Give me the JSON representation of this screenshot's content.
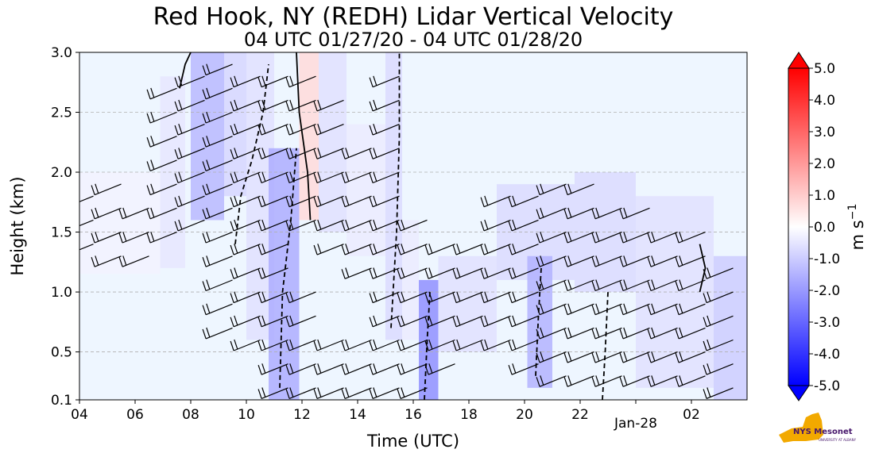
{
  "chart_data": {
    "type": "heatmap",
    "title": "Red Hook, NY (REDH) Lidar Vertical Velocity",
    "subtitle": "04 UTC 01/27/20 - 04 UTC 01/28/20",
    "xlabel": "Time (UTC)",
    "ylabel": "Height (km)",
    "x_range_hours_utc": [
      4,
      28
    ],
    "x_ticks": [
      {
        "hour": 4,
        "label": "04"
      },
      {
        "hour": 6,
        "label": "06"
      },
      {
        "hour": 8,
        "label": "08"
      },
      {
        "hour": 10,
        "label": "10"
      },
      {
        "hour": 12,
        "label": "12"
      },
      {
        "hour": 14,
        "label": "14"
      },
      {
        "hour": 16,
        "label": "16"
      },
      {
        "hour": 18,
        "label": "18"
      },
      {
        "hour": 20,
        "label": "20"
      },
      {
        "hour": 22,
        "label": "22"
      },
      {
        "hour": 24,
        "label": "Jan-28"
      },
      {
        "hour": 26,
        "label": "02"
      }
    ],
    "ylim": [
      0.1,
      3.0
    ],
    "y_ticks": [
      {
        "value": 0.1,
        "label": "0.1"
      },
      {
        "value": 0.5,
        "label": "0.5"
      },
      {
        "value": 1.0,
        "label": "1.0"
      },
      {
        "value": 1.5,
        "label": "1.5"
      },
      {
        "value": 2.0,
        "label": "2.0"
      },
      {
        "value": 2.5,
        "label": "2.5"
      },
      {
        "value": 3.0,
        "label": "3.0"
      }
    ],
    "grid": "horizontal dashed",
    "colorbar": {
      "label": "m s",
      "label_exponent": "−1",
      "range": [
        -5.0,
        5.0
      ],
      "ticks": [
        {
          "value": 5,
          "label": "5.0"
        },
        {
          "value": 4,
          "label": "4.0"
        },
        {
          "value": 3,
          "label": "3.0"
        },
        {
          "value": 2,
          "label": "2.0"
        },
        {
          "value": 1,
          "label": "1.0"
        },
        {
          "value": 0,
          "label": "0.0"
        },
        {
          "value": -1,
          "label": "-1.0"
        },
        {
          "value": -2,
          "label": "-2.0"
        },
        {
          "value": -3,
          "label": "-3.0"
        },
        {
          "value": -4,
          "label": "-4.0"
        },
        {
          "value": -5,
          "label": "-5.0"
        }
      ],
      "colors": {
        "min": "#0000ff",
        "mid": "#ffffff",
        "max": "#ff0000",
        "background": "#eef6ff"
      }
    },
    "velocity_regions": [
      {
        "t0": 4.0,
        "t1": 6.9,
        "h0": 1.15,
        "h1": 2.0,
        "w": -0.25
      },
      {
        "t0": 6.9,
        "t1": 7.8,
        "h0": 1.2,
        "h1": 2.8,
        "w": -0.5
      },
      {
        "t0": 8.0,
        "t1": 9.2,
        "h0": 1.6,
        "h1": 3.0,
        "w": -1.4
      },
      {
        "t0": 9.2,
        "t1": 10.0,
        "h0": 1.8,
        "h1": 3.0,
        "w": -0.8
      },
      {
        "t0": 10.0,
        "t1": 11.0,
        "h0": 0.6,
        "h1": 3.0,
        "w": -0.6
      },
      {
        "t0": 10.8,
        "t1": 11.9,
        "h0": 0.1,
        "h1": 2.2,
        "w": -1.6
      },
      {
        "t0": 11.9,
        "t1": 12.6,
        "h0": 1.6,
        "h1": 3.0,
        "w": 0.7
      },
      {
        "t0": 12.6,
        "t1": 13.6,
        "h0": 1.5,
        "h1": 3.0,
        "w": -0.6
      },
      {
        "t0": 13.6,
        "t1": 15.0,
        "h0": 1.3,
        "h1": 2.4,
        "w": -0.4
      },
      {
        "t0": 15.0,
        "t1": 15.6,
        "h0": 0.6,
        "h1": 3.0,
        "w": -0.7
      },
      {
        "t0": 15.6,
        "t1": 16.2,
        "h0": 0.6,
        "h1": 1.6,
        "w": -0.4
      },
      {
        "t0": 16.2,
        "t1": 16.9,
        "h0": 0.1,
        "h1": 1.1,
        "w": -2.2
      },
      {
        "t0": 16.9,
        "t1": 19.0,
        "h0": 0.5,
        "h1": 1.3,
        "w": -0.6
      },
      {
        "t0": 19.0,
        "t1": 21.8,
        "h0": 1.1,
        "h1": 1.9,
        "w": -0.7
      },
      {
        "t0": 20.1,
        "t1": 21.0,
        "h0": 0.2,
        "h1": 1.3,
        "w": -1.5
      },
      {
        "t0": 21.8,
        "t1": 24.0,
        "h0": 1.0,
        "h1": 2.0,
        "w": -0.7
      },
      {
        "t0": 24.0,
        "t1": 26.8,
        "h0": 0.2,
        "h1": 1.8,
        "w": -0.6
      },
      {
        "t0": 26.8,
        "t1": 28.0,
        "h0": 0.1,
        "h1": 1.3,
        "w": -1.0
      }
    ],
    "contours": [
      {
        "w": -1.0,
        "style": "dashed",
        "points": [
          [
            9.6,
            1.4
          ],
          [
            9.8,
            1.8
          ],
          [
            10.2,
            2.1
          ],
          [
            10.6,
            2.5
          ],
          [
            10.8,
            2.9
          ]
        ]
      },
      {
        "w": -1.0,
        "style": "dashed",
        "points": [
          [
            11.2,
            0.2
          ],
          [
            11.3,
            1.0
          ],
          [
            11.6,
            1.6
          ],
          [
            11.8,
            2.2
          ]
        ]
      },
      {
        "w": -1.0,
        "style": "dashed",
        "points": [
          [
            15.2,
            0.7
          ],
          [
            15.4,
            1.5
          ],
          [
            15.5,
            2.3
          ],
          [
            15.5,
            3.0
          ]
        ]
      },
      {
        "w": -1.0,
        "style": "dashed",
        "points": [
          [
            16.4,
            0.1
          ],
          [
            16.5,
            0.6
          ],
          [
            16.6,
            1.0
          ]
        ]
      },
      {
        "w": -1.0,
        "style": "dashed",
        "points": [
          [
            20.4,
            0.3
          ],
          [
            20.5,
            0.8
          ],
          [
            20.6,
            1.2
          ]
        ]
      },
      {
        "w": -1.0,
        "style": "dashed",
        "points": [
          [
            22.8,
            0.1
          ],
          [
            22.9,
            0.5
          ],
          [
            23.0,
            1.0
          ]
        ]
      },
      {
        "w": 1.0,
        "style": "solid",
        "points": [
          [
            11.8,
            3.0
          ],
          [
            11.9,
            2.5
          ],
          [
            12.2,
            2.0
          ],
          [
            12.3,
            1.6
          ]
        ]
      },
      {
        "w": 1.0,
        "style": "solid",
        "points": [
          [
            7.6,
            2.7
          ],
          [
            7.8,
            2.9
          ],
          [
            8.0,
            3.0
          ]
        ]
      },
      {
        "w": 1.0,
        "style": "solid",
        "points": [
          [
            26.3,
            1.0
          ],
          [
            26.5,
            1.2
          ],
          [
            26.3,
            1.4
          ]
        ]
      }
    ],
    "wind_barbs": [
      {
        "hour": 4.5,
        "heights": [
          1.4,
          1.6,
          1.8
        ]
      },
      {
        "hour": 5.5,
        "heights": [
          1.3,
          1.5,
          1.7,
          1.9
        ]
      },
      {
        "hour": 6.5,
        "heights": [
          1.3,
          1.5,
          1.7
        ]
      },
      {
        "hour": 7.5,
        "heights": [
          1.5,
          1.7,
          1.9,
          2.1,
          2.3,
          2.5,
          2.7
        ]
      },
      {
        "hour": 8.5,
        "heights": [
          1.6,
          1.8,
          2.0,
          2.2,
          2.4,
          2.6,
          2.8
        ]
      },
      {
        "hour": 9.5,
        "heights": [
          0.7,
          0.9,
          1.1,
          1.3,
          1.5,
          1.7,
          1.9,
          2.1,
          2.3,
          2.5,
          2.7,
          2.9
        ]
      },
      {
        "hour": 10.5,
        "heights": [
          0.6,
          0.8,
          1.0,
          1.2,
          1.4,
          1.6,
          1.8,
          2.0,
          2.2,
          2.4,
          2.6,
          2.8
        ]
      },
      {
        "hour": 11.5,
        "heights": [
          0.2,
          0.4,
          0.6,
          0.8,
          1.0,
          1.2,
          1.4,
          1.6,
          1.8,
          2.0,
          2.2,
          2.4,
          2.6,
          2.8
        ]
      },
      {
        "hour": 12.5,
        "heights": [
          0.2,
          0.4,
          0.6,
          0.8,
          1.0,
          1.6,
          1.8,
          2.0,
          2.2,
          2.4,
          2.6,
          2.8
        ]
      },
      {
        "hour": 13.5,
        "heights": [
          0.2,
          0.4,
          0.6,
          1.4,
          1.6,
          1.8,
          2.0,
          2.2,
          2.4,
          2.6
        ]
      },
      {
        "hour": 14.5,
        "heights": [
          0.2,
          0.4,
          0.6,
          1.2,
          1.4,
          1.6,
          1.8,
          2.0,
          2.2
        ]
      },
      {
        "hour": 15.5,
        "heights": [
          0.2,
          0.4,
          0.6,
          0.8,
          1.0,
          1.2,
          1.4,
          1.6,
          1.8,
          2.0,
          2.2,
          2.4,
          2.6,
          2.8
        ]
      },
      {
        "hour": 16.5,
        "heights": [
          0.2,
          0.4,
          0.6,
          0.8,
          1.0,
          1.2,
          1.4,
          1.6
        ]
      },
      {
        "hour": 17.5,
        "heights": [
          0.4,
          0.6,
          0.8,
          1.0,
          1.2,
          1.4
        ]
      },
      {
        "hour": 18.5,
        "heights": [
          0.6,
          0.8,
          1.0,
          1.2,
          1.4
        ]
      },
      {
        "hour": 19.5,
        "heights": [
          0.6,
          0.8,
          1.0,
          1.2,
          1.4,
          1.6,
          1.8
        ]
      },
      {
        "hour": 20.5,
        "heights": [
          0.4,
          0.6,
          0.8,
          1.0,
          1.2,
          1.4,
          1.6,
          1.8
        ]
      },
      {
        "hour": 21.5,
        "heights": [
          0.3,
          0.5,
          0.7,
          0.9,
          1.1,
          1.3,
          1.5,
          1.7,
          1.9
        ]
      },
      {
        "hour": 22.5,
        "heights": [
          0.3,
          0.5,
          0.7,
          0.9,
          1.1,
          1.3,
          1.5,
          1.7,
          1.9
        ]
      },
      {
        "hour": 23.5,
        "heights": [
          0.3,
          0.5,
          0.7,
          0.9,
          1.1,
          1.3,
          1.5,
          1.7
        ]
      },
      {
        "hour": 24.5,
        "heights": [
          0.3,
          0.5,
          0.7,
          0.9,
          1.1,
          1.3,
          1.5,
          1.7
        ]
      },
      {
        "hour": 25.5,
        "heights": [
          0.3,
          0.5,
          0.7,
          0.9,
          1.1,
          1.3,
          1.5
        ]
      },
      {
        "hour": 26.5,
        "heights": [
          0.3,
          0.5,
          0.7,
          0.9,
          1.1,
          1.3,
          1.5
        ]
      },
      {
        "hour": 27.5,
        "heights": [
          0.2,
          0.4,
          0.6,
          0.8,
          1.0,
          1.2
        ]
      }
    ]
  },
  "logo": {
    "text": "NYS Mesonet",
    "subtext": "UNIVERSITY AT ALBANY",
    "colors": {
      "state": "#f2a900",
      "text": "#46166b"
    }
  }
}
